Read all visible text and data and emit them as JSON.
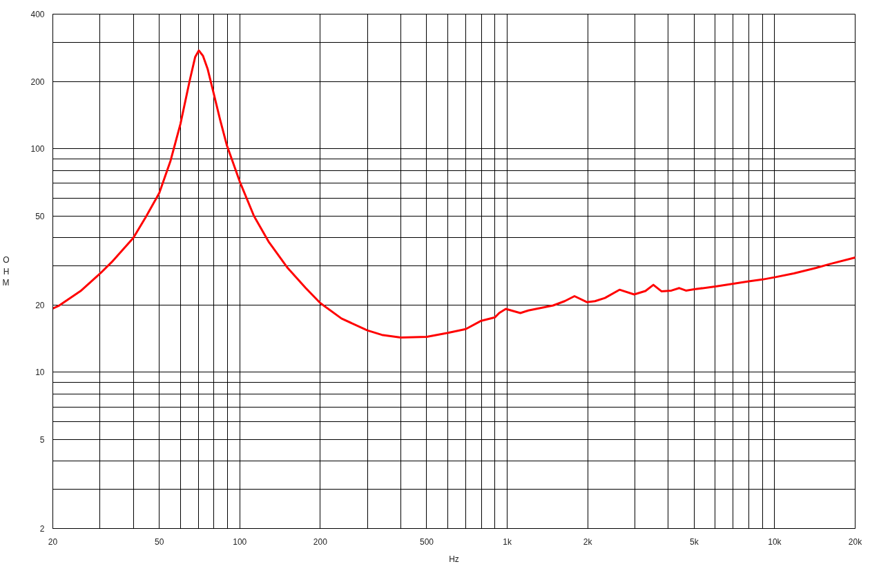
{
  "chart_data": {
    "type": "line",
    "xlabel": "Hz",
    "ylabel": "OHM",
    "log": "xy",
    "grid": true,
    "xlim": [
      20,
      20000
    ],
    "ylim": [
      2,
      400
    ],
    "xticks": [
      20,
      {
        "value": 30,
        "label": null
      },
      {
        "value": 40,
        "label": null
      },
      50,
      {
        "value": 60,
        "label": null
      },
      {
        "value": 70,
        "label": null
      },
      {
        "value": 80,
        "label": null
      },
      {
        "value": 90,
        "label": null
      },
      100,
      200,
      {
        "value": 300,
        "label": null
      },
      {
        "value": 400,
        "label": null
      },
      500,
      {
        "value": 600,
        "label": null
      },
      {
        "value": 700,
        "label": null
      },
      {
        "value": 800,
        "label": null
      },
      {
        "value": 900,
        "label": null
      },
      {
        "value": 1000,
        "label": "1k"
      },
      {
        "value": 2000,
        "label": "2k"
      },
      {
        "value": 3000,
        "label": null
      },
      {
        "value": 4000,
        "label": null
      },
      {
        "value": 5000,
        "label": "5k"
      },
      {
        "value": 6000,
        "label": null
      },
      {
        "value": 7000,
        "label": null
      },
      {
        "value": 8000,
        "label": null
      },
      {
        "value": 9000,
        "label": null
      },
      {
        "value": 10000,
        "label": "10k"
      },
      {
        "value": 20000,
        "label": "20k"
      }
    ],
    "yticks": [
      2,
      {
        "value": 3,
        "label": null
      },
      {
        "value": 4,
        "label": null
      },
      5,
      {
        "value": 6,
        "label": null
      },
      {
        "value": 7,
        "label": null
      },
      {
        "value": 8,
        "label": null
      },
      {
        "value": 9,
        "label": null
      },
      10,
      20,
      {
        "value": 30,
        "label": null
      },
      {
        "value": 40,
        "label": null
      },
      50,
      {
        "value": 60,
        "label": null
      },
      {
        "value": 70,
        "label": null
      },
      {
        "value": 80,
        "label": null
      },
      {
        "value": 90,
        "label": null
      },
      100,
      200,
      {
        "value": 300,
        "label": null
      },
      400
    ],
    "x": [
      20,
      21,
      25.4,
      30,
      33.2,
      40,
      44.5,
      50,
      55.1,
      60,
      65,
      68.1,
      70.3,
      72.9,
      75.8,
      79.6,
      84.4,
      89.4,
      100,
      113,
      128,
      151,
      176,
      200,
      240,
      300,
      340,
      400,
      500,
      600,
      700,
      800,
      900,
      933,
      988,
      1120,
      1200,
      1485,
      1640,
      1785,
      1986,
      2130,
      2320,
      2630,
      2983,
      3288,
      3520,
      3780,
      4110,
      4400,
      4660,
      5000,
      6000,
      7000,
      8000,
      9000,
      10000,
      11800,
      14300,
      16100,
      20000
    ],
    "series": [
      {
        "color": "#ff0000",
        "values": [
          19.3,
          19.8,
          23.1,
          27.6,
          31.1,
          39.9,
          49.4,
          63.3,
          88.3,
          129,
          202,
          257,
          275,
          260,
          228,
          180,
          135,
          104,
          71.3,
          50.0,
          38.5,
          29.3,
          23.9,
          20.4,
          17.4,
          15.4,
          14.7,
          14.3,
          14.4,
          15.0,
          15.6,
          17.0,
          17.6,
          18.4,
          19.2,
          18.4,
          18.9,
          19.9,
          20.8,
          21.9,
          20.6,
          20.8,
          21.5,
          23.4,
          22.3,
          23.1,
          24.6,
          23.0,
          23.2,
          23.8,
          23.2,
          23.5,
          24.2,
          24.9,
          25.5,
          26.0,
          26.6,
          27.7,
          29.3,
          30.5,
          32.6
        ]
      }
    ]
  }
}
